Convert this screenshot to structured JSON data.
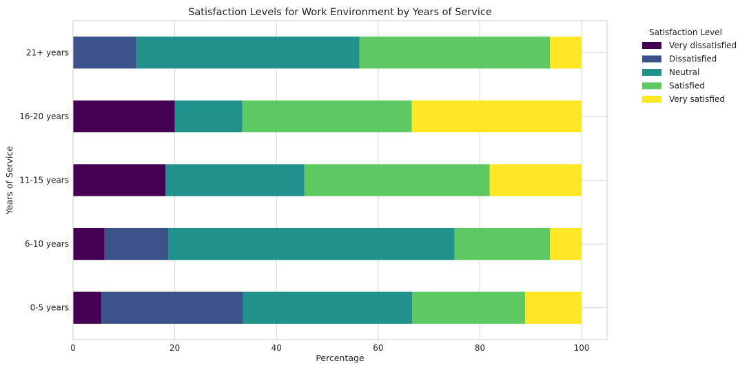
{
  "chart_data": {
    "type": "bar",
    "orientation": "horizontal",
    "stacked": true,
    "title": "Satisfaction Levels for Work Environment by Years of Service",
    "xlabel": "Percentage",
    "ylabel": "Years of Service",
    "xlim": [
      0,
      105
    ],
    "xticks": [
      0,
      20,
      40,
      60,
      80,
      100
    ],
    "grid": true,
    "legend_title": "Satisfaction Level",
    "legend_placement": "outside-right-top",
    "categories": [
      "0-5 years",
      "6-10 years",
      "11-15 years",
      "16-20 years",
      "21+ years"
    ],
    "series": [
      {
        "name": "Very dissatisfied",
        "color": "#440154",
        "values": [
          5.6,
          6.2,
          18.2,
          20.0,
          0.0
        ]
      },
      {
        "name": "Dissatisfied",
        "color": "#3b528b",
        "values": [
          27.8,
          12.5,
          0.0,
          0.0,
          12.5
        ]
      },
      {
        "name": "Neutral",
        "color": "#21918c",
        "values": [
          33.3,
          56.3,
          27.3,
          13.3,
          43.8
        ]
      },
      {
        "name": "Satisfied",
        "color": "#5ec962",
        "values": [
          22.2,
          18.8,
          36.4,
          33.3,
          37.5
        ]
      },
      {
        "name": "Very satisfied",
        "color": "#fde725",
        "values": [
          11.1,
          6.2,
          18.1,
          33.4,
          6.2
        ]
      }
    ]
  }
}
